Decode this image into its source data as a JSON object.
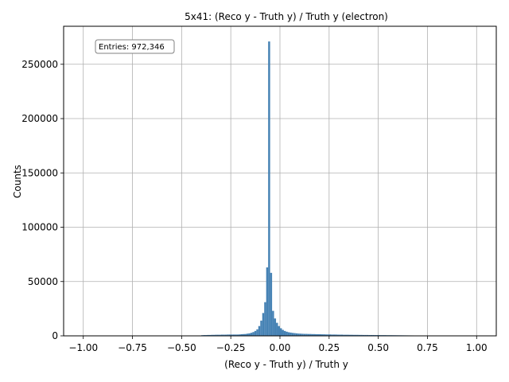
{
  "chart_data": {
    "type": "histogram",
    "title": "5x41: (Reco y - Truth y) / Truth y (electron)",
    "xlabel": "(Reco y - Truth y) / Truth y",
    "ylabel": "Counts",
    "xlim": [
      -1.1,
      1.1
    ],
    "ylim": [
      0,
      285000
    ],
    "grid": true,
    "x_ticks": [
      -1.0,
      -0.75,
      -0.5,
      -0.25,
      0.0,
      0.25,
      0.5,
      0.75,
      1.0
    ],
    "x_tick_labels": [
      "−1.00",
      "−0.75",
      "−0.50",
      "−0.25",
      "0.00",
      "0.25",
      "0.50",
      "0.75",
      "1.00"
    ],
    "y_ticks": [
      0,
      50000,
      100000,
      150000,
      200000,
      250000
    ],
    "y_tick_labels": [
      "0",
      "50000",
      "100000",
      "150000",
      "200000",
      "250000"
    ],
    "annotation": "Entries: 972,346",
    "annotation_position": "top-left",
    "bar_color": "#4682b4",
    "bins": {
      "bin_width": 0.01,
      "edges_start": -0.4,
      "counts": [
        600,
        700,
        700,
        800,
        800,
        900,
        900,
        1000,
        1000,
        1000,
        1100,
        1100,
        1100,
        1200,
        1200,
        1200,
        1200,
        1200,
        1200,
        1300,
        1500,
        1600,
        1700,
        2000,
        2300,
        2800,
        3500,
        4500,
        6000,
        9000,
        14000,
        21000,
        31000,
        63000,
        271000,
        58000,
        23000,
        16000,
        12000,
        9000,
        7000,
        5500,
        4500,
        3800,
        3300,
        3000,
        2700,
        2500,
        2300,
        2100,
        2000,
        1900,
        1800,
        1800,
        1700,
        1700,
        1600,
        1600,
        1500,
        1500,
        1500,
        1400,
        1400,
        1300,
        1300,
        1300,
        1200,
        1200,
        1200,
        1100,
        1100,
        1100,
        1000,
        1000,
        1000,
        950,
        950,
        900,
        900,
        900,
        850,
        850,
        800,
        800,
        800,
        750,
        750,
        750,
        700,
        700,
        700,
        650,
        650,
        650,
        600,
        600,
        600,
        580,
        560,
        540,
        520,
        500,
        480,
        460,
        440,
        420,
        400,
        380,
        360,
        340,
        320,
        300,
        280,
        260,
        240,
        220,
        200,
        180,
        160,
        140,
        120,
        100,
        80,
        60,
        40,
        20,
        10,
        5,
        0,
        0,
        0,
        0,
        0,
        0,
        300,
        0,
        0,
        0,
        0,
        0,
        0,
        0
      ]
    }
  }
}
